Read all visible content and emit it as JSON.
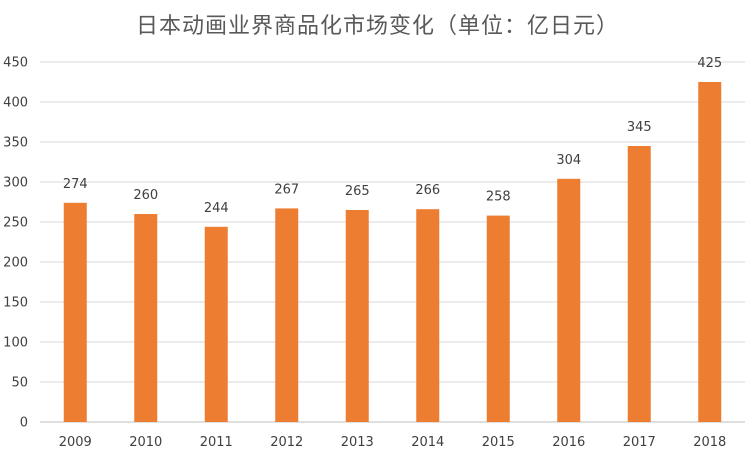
{
  "chart_data": {
    "type": "bar",
    "title": "日本动画业界商品化市场变化（单位：亿日元）",
    "xlabel": "",
    "ylabel": "",
    "categories": [
      "2009",
      "2010",
      "2011",
      "2012",
      "2013",
      "2014",
      "2015",
      "2016",
      "2017",
      "2018"
    ],
    "values": [
      274,
      260,
      244,
      267,
      265,
      266,
      258,
      304,
      345,
      425
    ],
    "data_labels": [
      "274",
      "260",
      "244",
      "267",
      "265",
      "266",
      "258",
      "304",
      "345",
      "425"
    ],
    "ylim": [
      0,
      450
    ],
    "yticks": [
      0,
      50,
      100,
      150,
      200,
      250,
      300,
      350,
      400,
      450
    ],
    "grid": true,
    "legend": "none",
    "bar_color": "#ED7D31",
    "grid_color": "#D9D9D9"
  }
}
